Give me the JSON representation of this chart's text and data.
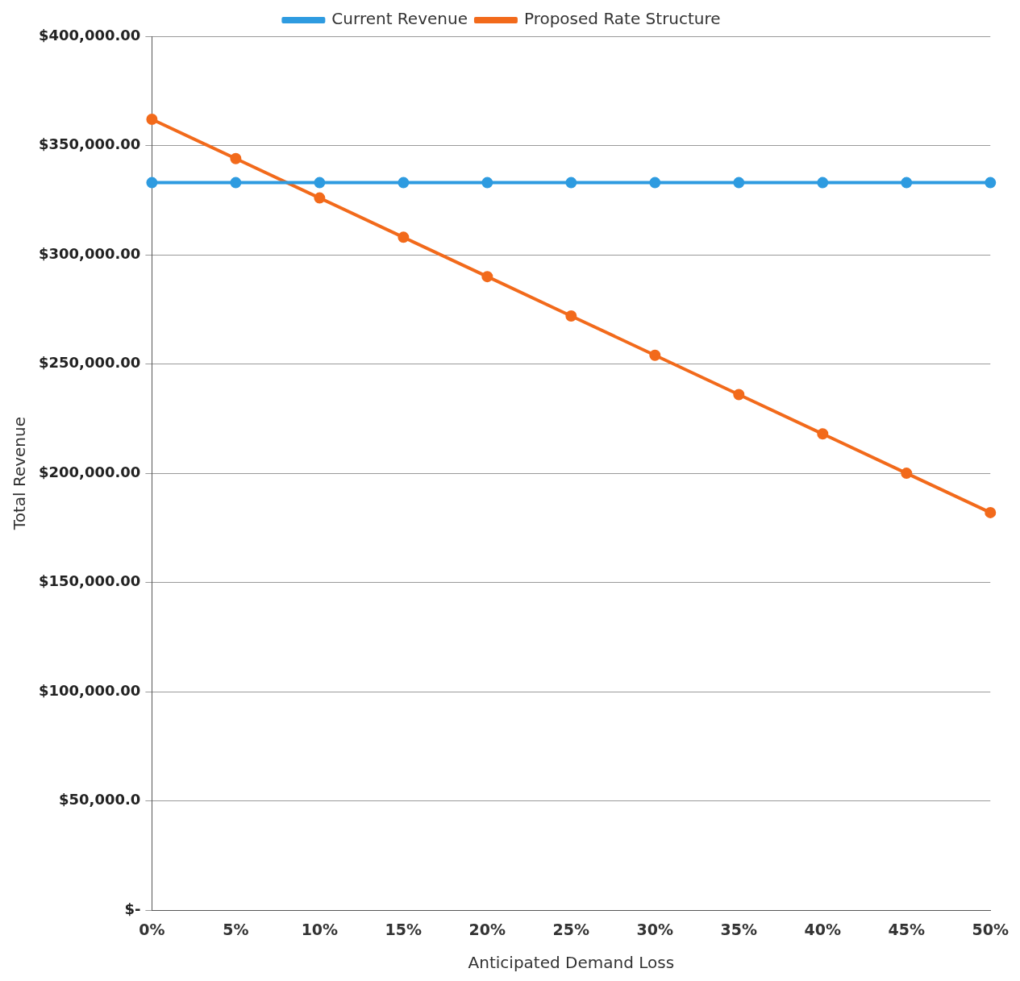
{
  "chart_data": {
    "type": "line",
    "xlabel": "Anticipated Demand Loss",
    "ylabel": "Total Revenue",
    "categories": [
      "0%",
      "5%",
      "10%",
      "15%",
      "20%",
      "25%",
      "30%",
      "35%",
      "40%",
      "45%",
      "50%"
    ],
    "series": [
      {
        "name": "Current Revenue",
        "color": "#2e9be0",
        "values": [
          333000,
          333000,
          333000,
          333000,
          333000,
          333000,
          333000,
          333000,
          333000,
          333000,
          333000
        ]
      },
      {
        "name": "Proposed Rate Structure",
        "color": "#f26a1b",
        "values": [
          362000,
          344000,
          326000,
          308000,
          290000,
          272000,
          254000,
          236000,
          218000,
          200000,
          182000
        ]
      }
    ],
    "ylim": [
      0,
      400000
    ],
    "yticks": [
      {
        "value": 0,
        "label": "$-"
      },
      {
        "value": 50000,
        "label": "$50,000.0"
      },
      {
        "value": 100000,
        "label": "$100,000.00"
      },
      {
        "value": 150000,
        "label": "$150,000.00"
      },
      {
        "value": 200000,
        "label": "$200,000.00"
      },
      {
        "value": 250000,
        "label": "$250,000.00"
      },
      {
        "value": 300000,
        "label": "$300,000.00"
      },
      {
        "value": 350000,
        "label": "$350,000.00"
      },
      {
        "value": 400000,
        "label": "$400,000.00"
      }
    ],
    "grid": "y",
    "legend": "top",
    "marker": "circle",
    "line_style": "solid"
  }
}
